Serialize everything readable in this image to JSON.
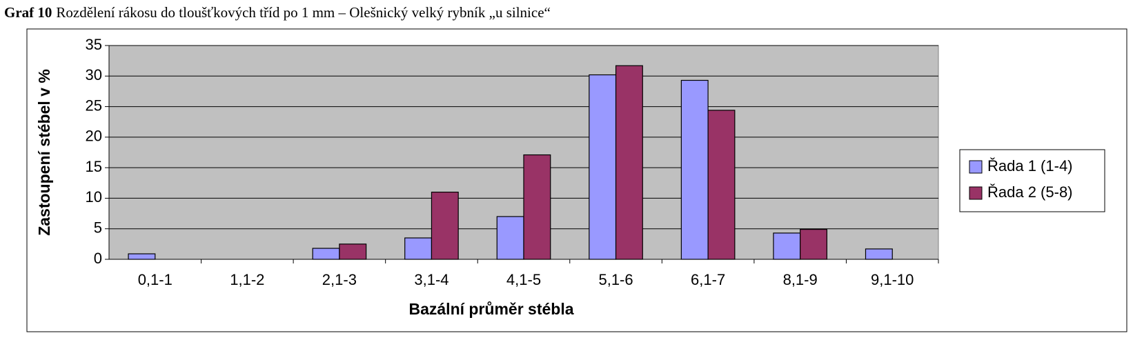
{
  "chart_data": {
    "type": "bar",
    "title_label": "Graf 10",
    "title": "Rozdělení rákosu do tloušťkových tříd po 1 mm – Olešnický velký rybník „u silnice“",
    "x_label": "Bazální průměr stébla",
    "y_label": "Zastoupení stébel v %",
    "categories": [
      "0,1-1",
      "1,1-2",
      "2,1-3",
      "3,1-4",
      "4,1-5",
      "5,1-6",
      "6,1-7",
      "8,1-9",
      "9,1-10"
    ],
    "series": [
      {
        "name": "Řada 1 (1-4)",
        "color": "#9999ff",
        "values": [
          0.9,
          0,
          1.8,
          3.5,
          7,
          30.2,
          29.3,
          4.3,
          1.7
        ]
      },
      {
        "name": "Řada 2 (5-8)",
        "color": "#993366",
        "values": [
          0,
          0,
          2.5,
          11,
          17.1,
          31.7,
          24.4,
          4.9,
          0
        ]
      }
    ],
    "ylim": [
      0,
      35
    ],
    "yticks": [
      0,
      5,
      10,
      15,
      20,
      25,
      30,
      35
    ],
    "grid": true,
    "legend": "right"
  }
}
